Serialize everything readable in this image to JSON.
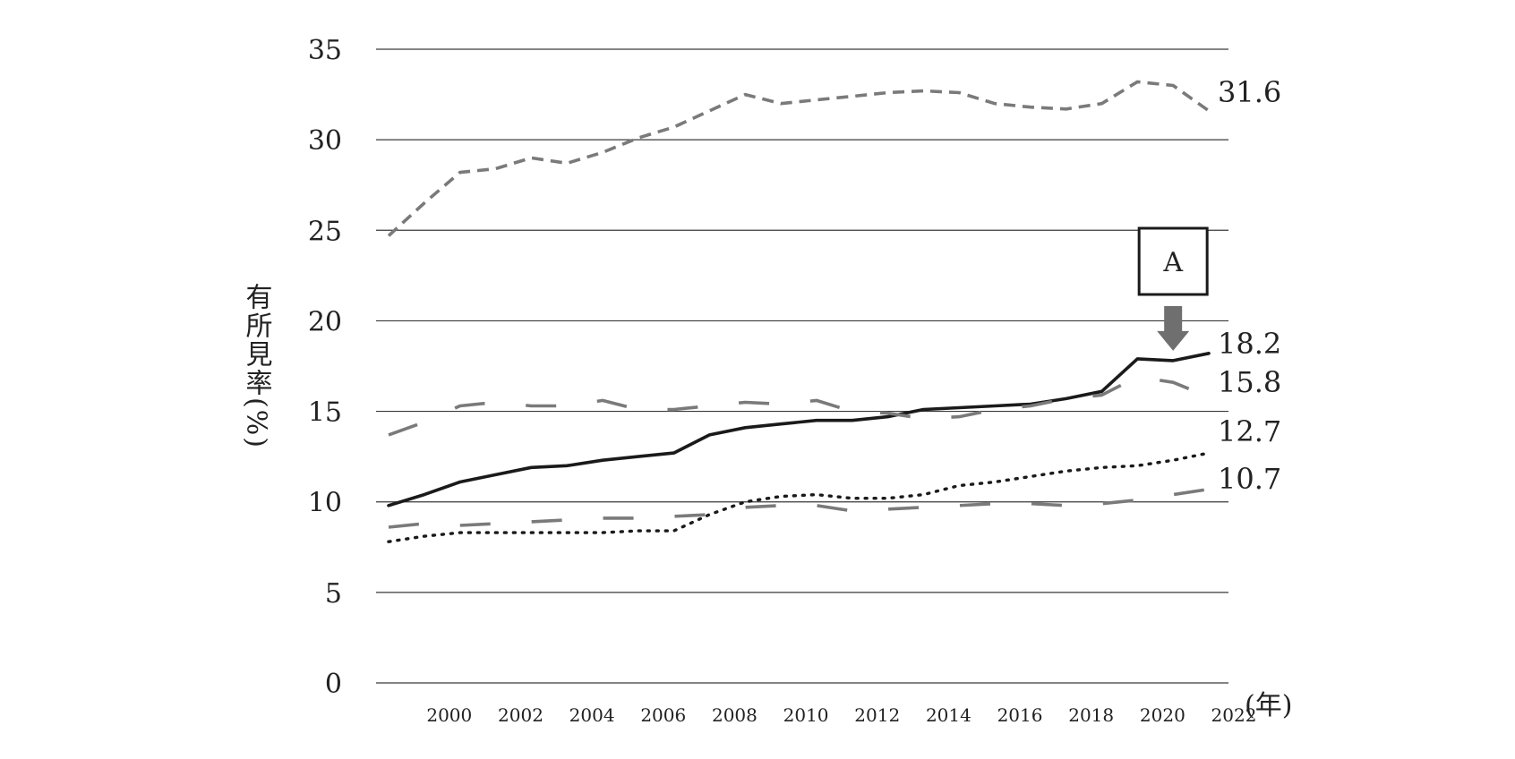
{
  "chart_data": {
    "type": "line",
    "title": "",
    "ylabel": "有所見率(%)",
    "x_unit_label": "(年)",
    "ylim": [
      0,
      35
    ],
    "yticks": [
      0,
      5,
      10,
      15,
      20,
      25,
      30,
      35
    ],
    "xlim": [
      1999,
      2022
    ],
    "xticks": [
      2000,
      2002,
      2004,
      2006,
      2008,
      2010,
      2012,
      2014,
      2016,
      2018,
      2020,
      2022
    ],
    "grid": true,
    "legend": "none",
    "x": [
      1999,
      2000,
      2001,
      2002,
      2003,
      2004,
      2005,
      2006,
      2007,
      2008,
      2009,
      2010,
      2011,
      2012,
      2013,
      2014,
      2015,
      2016,
      2017,
      2018,
      2019,
      2020,
      2021,
      2022
    ],
    "series": [
      {
        "label": "31.6",
        "style": "short-dash",
        "color": "#7a7a7a",
        "values": [
          24.7,
          26.5,
          28.2,
          28.4,
          29.0,
          28.7,
          29.3,
          30.1,
          30.7,
          31.6,
          32.5,
          32.0,
          32.2,
          32.4,
          32.6,
          32.7,
          32.6,
          32.0,
          31.8,
          31.7,
          32.0,
          33.2,
          33.0,
          31.6
        ]
      },
      {
        "label": "18.2",
        "style": "solid",
        "color": "#1a1a1a",
        "values": [
          9.8,
          10.4,
          11.1,
          11.5,
          11.9,
          12.0,
          12.3,
          12.5,
          12.7,
          13.7,
          14.1,
          14.3,
          14.5,
          14.5,
          14.7,
          15.1,
          15.2,
          15.3,
          15.4,
          15.7,
          16.1,
          17.9,
          17.8,
          18.2
        ]
      },
      {
        "label": "15.8",
        "style": "long-dash",
        "color": "#7a7a7a",
        "values": [
          13.7,
          14.4,
          15.3,
          15.5,
          15.3,
          15.3,
          15.6,
          15.1,
          15.1,
          15.3,
          15.5,
          15.4,
          15.6,
          15.0,
          14.9,
          14.6,
          14.7,
          15.1,
          15.3,
          15.7,
          15.9,
          16.9,
          16.6,
          15.8
        ]
      },
      {
        "label": "12.7",
        "style": "dotted",
        "color": "#1a1a1a",
        "values": [
          7.8,
          8.1,
          8.3,
          8.3,
          8.3,
          8.3,
          8.3,
          8.4,
          8.4,
          9.3,
          10.0,
          10.3,
          10.4,
          10.2,
          10.2,
          10.4,
          10.9,
          11.1,
          11.4,
          11.7,
          11.9,
          12.0,
          12.3,
          12.7
        ]
      },
      {
        "label": "10.7",
        "style": "long-dash-gap",
        "color": "#7a7a7a",
        "values": [
          8.6,
          8.8,
          8.7,
          8.8,
          8.9,
          9.0,
          9.1,
          9.1,
          9.2,
          9.3,
          9.7,
          9.8,
          9.8,
          9.5,
          9.6,
          9.7,
          9.8,
          9.9,
          9.9,
          9.8,
          9.9,
          10.1,
          10.4,
          10.7
        ]
      }
    ],
    "annotation": {
      "text": "A",
      "target_series": "18.2",
      "target_x": 2021
    }
  }
}
